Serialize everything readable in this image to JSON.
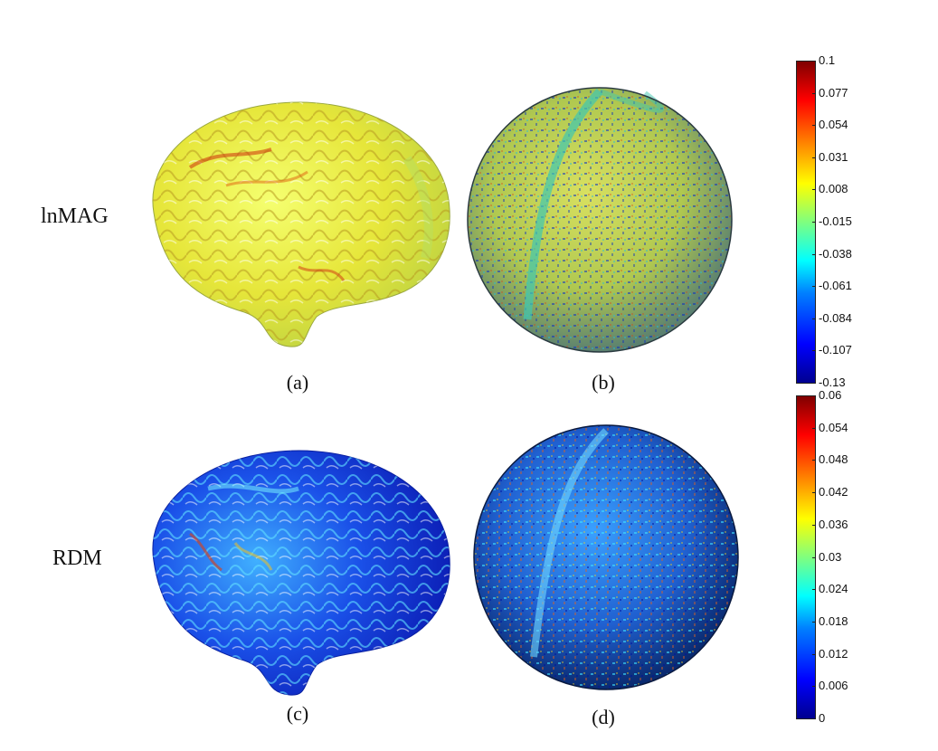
{
  "rows": [
    {
      "label": "lnMAG"
    },
    {
      "label": "RDM"
    }
  ],
  "captions": [
    "(a)",
    "(b)",
    "(c)",
    "(d)"
  ],
  "colorbars": [
    {
      "ticks": [
        "0.1",
        "0.077",
        "0.054",
        "0.031",
        "0.008",
        "-0.015",
        "-0.038",
        "-0.061",
        "-0.084",
        "-0.107",
        "-0.13"
      ],
      "colormap": "jet"
    },
    {
      "ticks": [
        "0.06",
        "0.054",
        "0.048",
        "0.042",
        "0.036",
        "0.03",
        "0.024",
        "0.018",
        "0.012",
        "0.006",
        "0"
      ],
      "colormap": "jet"
    }
  ],
  "colors": {
    "jet_low": "#00008f",
    "jet_mid": "#7fff7f",
    "jet_high": "#800000"
  }
}
